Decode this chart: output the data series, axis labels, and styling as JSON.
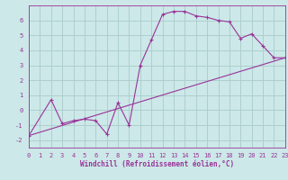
{
  "xlabel": "Windchill (Refroidissement éolien,°C)",
  "bg_color": "#cce8e8",
  "grid_color": "#aacccc",
  "line_color": "#993399",
  "xlim": [
    0,
    23
  ],
  "ylim": [
    -2.5,
    7.0
  ],
  "xticks": [
    0,
    1,
    2,
    3,
    4,
    5,
    6,
    7,
    8,
    9,
    10,
    11,
    12,
    13,
    14,
    15,
    16,
    17,
    18,
    19,
    20,
    21,
    22,
    23
  ],
  "yticks": [
    -2,
    -1,
    0,
    1,
    2,
    3,
    4,
    5,
    6
  ],
  "curve1_x": [
    0,
    2,
    3,
    4,
    5,
    6,
    7,
    8,
    9,
    10,
    11,
    12,
    13,
    14,
    15,
    16,
    17,
    18,
    19,
    20,
    21,
    22,
    23
  ],
  "curve1_y": [
    -1.7,
    0.7,
    -0.9,
    -0.7,
    -0.6,
    -0.7,
    -1.6,
    0.5,
    -1.0,
    3.0,
    4.7,
    6.4,
    6.6,
    6.6,
    6.3,
    6.2,
    6.0,
    5.9,
    4.8,
    5.1,
    4.3,
    3.5,
    3.5
  ],
  "curve2_x": [
    0,
    23
  ],
  "curve2_y": [
    -1.7,
    3.5
  ],
  "xlabel_fontsize": 5.5,
  "tick_fontsize": 5.0
}
